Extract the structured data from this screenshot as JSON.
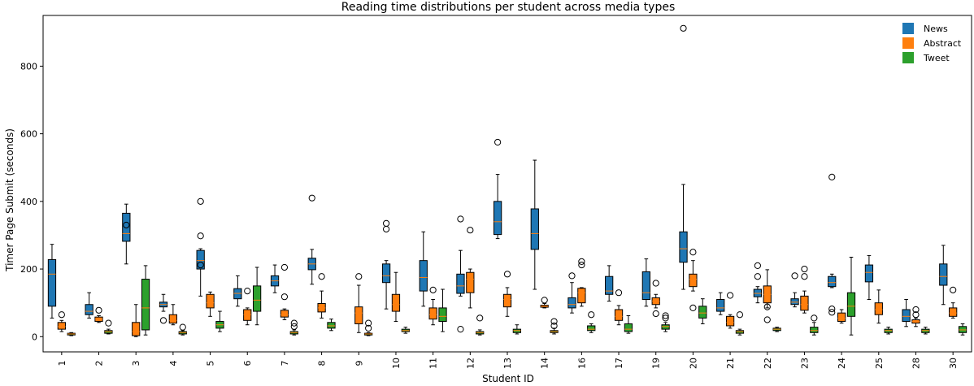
{
  "chart_data": {
    "type": "box",
    "title": "Reading time distributions per student across media types",
    "xlabel": "Student ID",
    "ylabel": "Timer Page Submit (seconds)",
    "ylim": [
      -45,
      950
    ],
    "yticks": [
      0,
      200,
      400,
      600,
      800
    ],
    "legend_position": "top-right",
    "grid": false,
    "categories": [
      "1",
      "2",
      "3",
      "4",
      "5",
      "6",
      "7",
      "8",
      "9",
      "10",
      "11",
      "12",
      "13",
      "14",
      "16",
      "17",
      "19",
      "20",
      "21",
      "22",
      "23",
      "24",
      "25",
      "28",
      "30"
    ],
    "series": [
      {
        "name": "News",
        "color": "#1f77b4",
        "boxes": [
          {
            "min": 55,
            "q1": 90,
            "med": 185,
            "q3": 228,
            "max": 273,
            "outliers": []
          },
          {
            "min": 55,
            "q1": 65,
            "med": 75,
            "q3": 95,
            "max": 130,
            "outliers": []
          },
          {
            "min": 215,
            "q1": 282,
            "med": 305,
            "q3": 365,
            "max": 392,
            "outliers": [
              330
            ]
          },
          {
            "min": 75,
            "q1": 88,
            "med": 95,
            "q3": 102,
            "max": 125,
            "outliers": [
              48
            ]
          },
          {
            "min": 120,
            "q1": 200,
            "med": 225,
            "q3": 255,
            "max": 260,
            "outliers": [
              400,
              298,
              212
            ]
          },
          {
            "min": 90,
            "q1": 112,
            "med": 128,
            "q3": 142,
            "max": 180,
            "outliers": []
          },
          {
            "min": 130,
            "q1": 150,
            "med": 165,
            "q3": 180,
            "max": 212,
            "outliers": []
          },
          {
            "min": 155,
            "q1": 198,
            "med": 215,
            "q3": 232,
            "max": 258,
            "outliers": [
              410
            ]
          },
          null,
          {
            "min": 82,
            "q1": 160,
            "med": 180,
            "q3": 215,
            "max": 225,
            "outliers": [
              335,
              318
            ]
          },
          {
            "min": 90,
            "q1": 135,
            "med": 175,
            "q3": 225,
            "max": 310,
            "outliers": []
          },
          {
            "min": 120,
            "q1": 128,
            "med": 150,
            "q3": 185,
            "max": 255,
            "outliers": [
              348,
              22
            ]
          },
          {
            "min": 290,
            "q1": 302,
            "med": 340,
            "q3": 400,
            "max": 480,
            "outliers": [
              575
            ]
          },
          {
            "min": 140,
            "q1": 258,
            "med": 305,
            "q3": 378,
            "max": 522,
            "outliers": []
          },
          {
            "min": 70,
            "q1": 85,
            "med": 95,
            "q3": 115,
            "max": 160,
            "outliers": [
              180
            ]
          },
          {
            "min": 105,
            "q1": 125,
            "med": 135,
            "q3": 178,
            "max": 210,
            "outliers": []
          },
          {
            "min": 90,
            "q1": 110,
            "med": 130,
            "q3": 192,
            "max": 230,
            "outliers": []
          },
          {
            "min": 140,
            "q1": 220,
            "med": 260,
            "q3": 310,
            "max": 450,
            "outliers": [
              912
            ]
          },
          {
            "min": 65,
            "q1": 75,
            "med": 85,
            "q3": 110,
            "max": 130,
            "outliers": []
          },
          {
            "min": 100,
            "q1": 118,
            "med": 128,
            "q3": 140,
            "max": 148,
            "outliers": [
              178,
              210
            ]
          },
          {
            "min": 88,
            "q1": 95,
            "med": 102,
            "q3": 112,
            "max": 130,
            "outliers": [
              180
            ]
          },
          {
            "min": 145,
            "q1": 148,
            "med": 160,
            "q3": 178,
            "max": 185,
            "outliers": [
              472,
              82,
              72
            ]
          },
          {
            "min": 110,
            "q1": 162,
            "med": 190,
            "q3": 212,
            "max": 240,
            "outliers": []
          },
          {
            "min": 30,
            "q1": 45,
            "med": 60,
            "q3": 80,
            "max": 110,
            "outliers": []
          },
          {
            "min": 95,
            "q1": 152,
            "med": 178,
            "q3": 215,
            "max": 270,
            "outliers": []
          }
        ]
      },
      {
        "name": "Abstract",
        "color": "#ff7f0e",
        "boxes": [
          {
            "min": 15,
            "q1": 22,
            "med": 30,
            "q3": 42,
            "max": 48,
            "outliers": [
              65
            ]
          },
          {
            "min": 42,
            "q1": 45,
            "med": 52,
            "q3": 58,
            "max": 62,
            "outliers": [
              78
            ]
          },
          {
            "min": 0,
            "q1": 3,
            "med": 15,
            "q3": 42,
            "max": 95,
            "outliers": []
          },
          {
            "min": 35,
            "q1": 40,
            "med": 48,
            "q3": 65,
            "max": 95,
            "outliers": []
          },
          {
            "min": 60,
            "q1": 85,
            "med": 100,
            "q3": 125,
            "max": 132,
            "outliers": []
          },
          {
            "min": 35,
            "q1": 48,
            "med": 65,
            "q3": 80,
            "max": 85,
            "outliers": [
              135
            ]
          },
          {
            "min": 50,
            "q1": 58,
            "med": 65,
            "q3": 78,
            "max": 82,
            "outliers": [
              118,
              205
            ]
          },
          {
            "min": 55,
            "q1": 73,
            "med": 85,
            "q3": 98,
            "max": 135,
            "outliers": [
              178
            ]
          },
          {
            "min": 12,
            "q1": 38,
            "med": 70,
            "q3": 88,
            "max": 152,
            "outliers": [
              178
            ]
          },
          {
            "min": 45,
            "q1": 75,
            "med": 95,
            "q3": 125,
            "max": 190,
            "outliers": []
          },
          {
            "min": 35,
            "q1": 52,
            "med": 65,
            "q3": 85,
            "max": 110,
            "outliers": [
              138
            ]
          },
          {
            "min": 85,
            "q1": 130,
            "med": 170,
            "q3": 190,
            "max": 200,
            "outliers": [
              315
            ]
          },
          {
            "min": 60,
            "q1": 88,
            "med": 110,
            "q3": 125,
            "max": 145,
            "outliers": [
              185
            ]
          },
          {
            "min": 85,
            "q1": 87,
            "med": 90,
            "q3": 93,
            "max": 98,
            "outliers": [
              108
            ]
          },
          {
            "min": 90,
            "q1": 100,
            "med": 130,
            "q3": 143,
            "max": 145,
            "outliers": [
              212,
              222
            ]
          },
          {
            "min": 35,
            "q1": 48,
            "med": 60,
            "q3": 80,
            "max": 92,
            "outliers": [
              130
            ]
          },
          {
            "min": 85,
            "q1": 95,
            "med": 105,
            "q3": 115,
            "max": 125,
            "outliers": [
              158,
              68
            ]
          },
          {
            "min": 135,
            "q1": 148,
            "med": 170,
            "q3": 185,
            "max": 225,
            "outliers": [
              250,
              85
            ]
          },
          {
            "min": 25,
            "q1": 32,
            "med": 42,
            "q3": 60,
            "max": 65,
            "outliers": [
              122
            ]
          },
          {
            "min": 85,
            "q1": 100,
            "med": 125,
            "q3": 150,
            "max": 198,
            "outliers": [
              88,
              50
            ]
          },
          {
            "min": 70,
            "q1": 78,
            "med": 95,
            "q3": 120,
            "max": 135,
            "outliers": [
              200,
              178
            ]
          },
          {
            "min": 40,
            "q1": 45,
            "med": 55,
            "q3": 70,
            "max": 80,
            "outliers": []
          },
          {
            "min": 40,
            "q1": 65,
            "med": 80,
            "q3": 100,
            "max": 138,
            "outliers": []
          },
          {
            "min": 30,
            "q1": 40,
            "med": 45,
            "q3": 50,
            "max": 55,
            "outliers": [
              80,
              65
            ]
          },
          {
            "min": 55,
            "q1": 60,
            "med": 70,
            "q3": 85,
            "max": 100,
            "outliers": [
              138
            ]
          }
        ]
      },
      {
        "name": "Tweet",
        "color": "#2ca02c",
        "boxes": [
          {
            "min": 3,
            "q1": 5,
            "med": 8,
            "q3": 10,
            "max": 12,
            "outliers": []
          },
          {
            "min": 8,
            "q1": 10,
            "med": 15,
            "q3": 18,
            "max": 22,
            "outliers": [
              40
            ]
          },
          {
            "min": 5,
            "q1": 20,
            "med": 85,
            "q3": 170,
            "max": 210,
            "outliers": []
          },
          {
            "min": 5,
            "q1": 8,
            "med": 12,
            "q3": 15,
            "max": 18,
            "outliers": [
              28
            ]
          },
          {
            "min": 15,
            "q1": 25,
            "med": 35,
            "q3": 45,
            "max": 75,
            "outliers": []
          },
          {
            "min": 35,
            "q1": 75,
            "med": 108,
            "q3": 150,
            "max": 205,
            "outliers": []
          },
          {
            "min": 5,
            "q1": 8,
            "med": 12,
            "q3": 15,
            "max": 20,
            "outliers": [
              40,
              30
            ]
          },
          {
            "min": 18,
            "q1": 25,
            "med": 32,
            "q3": 42,
            "max": 52,
            "outliers": []
          },
          {
            "min": 3,
            "q1": 5,
            "med": 8,
            "q3": 10,
            "max": 12,
            "outliers": [
              40,
              25
            ]
          },
          {
            "min": 10,
            "q1": 15,
            "med": 18,
            "q3": 22,
            "max": 28,
            "outliers": []
          },
          {
            "min": 15,
            "q1": 45,
            "med": 60,
            "q3": 85,
            "max": 140,
            "outliers": []
          },
          {
            "min": 5,
            "q1": 8,
            "med": 12,
            "q3": 15,
            "max": 20,
            "outliers": [
              55
            ]
          },
          {
            "min": 8,
            "q1": 12,
            "med": 18,
            "q3": 22,
            "max": 35,
            "outliers": []
          },
          {
            "min": 8,
            "q1": 12,
            "med": 15,
            "q3": 18,
            "max": 25,
            "outliers": [
              45,
              32
            ]
          },
          {
            "min": 12,
            "q1": 18,
            "med": 22,
            "q3": 32,
            "max": 38,
            "outliers": [
              65
            ]
          },
          {
            "min": 10,
            "q1": 15,
            "med": 22,
            "q3": 38,
            "max": 62,
            "outliers": []
          },
          {
            "min": 15,
            "q1": 22,
            "med": 30,
            "q3": 35,
            "max": 42,
            "outliers": [
              62,
              55
            ]
          },
          {
            "min": 38,
            "q1": 55,
            "med": 70,
            "q3": 90,
            "max": 112,
            "outliers": []
          },
          {
            "min": 5,
            "q1": 10,
            "med": 15,
            "q3": 18,
            "max": 22,
            "outliers": [
              65
            ]
          },
          {
            "min": 15,
            "q1": 18,
            "med": 22,
            "q3": 25,
            "max": 28,
            "outliers": []
          },
          {
            "min": 5,
            "q1": 12,
            "med": 18,
            "q3": 28,
            "max": 42,
            "outliers": [
              55
            ]
          },
          {
            "min": 5,
            "q1": 60,
            "med": 90,
            "q3": 130,
            "max": 235,
            "outliers": []
          },
          {
            "min": 8,
            "q1": 12,
            "med": 18,
            "q3": 22,
            "max": 28,
            "outliers": []
          },
          {
            "min": 8,
            "q1": 12,
            "med": 18,
            "q3": 22,
            "max": 28,
            "outliers": []
          },
          {
            "min": 5,
            "q1": 12,
            "med": 20,
            "q3": 30,
            "max": 38,
            "outliers": []
          }
        ]
      }
    ]
  }
}
